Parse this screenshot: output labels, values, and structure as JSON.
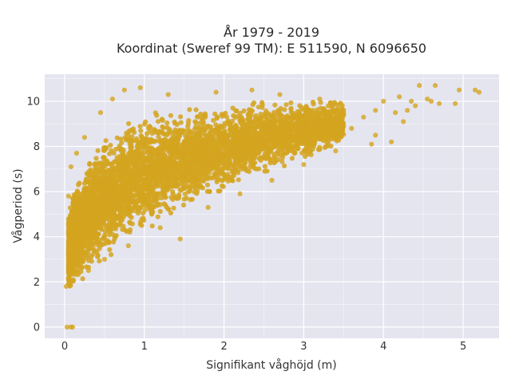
{
  "chart_data": {
    "type": "scatter",
    "title_line1": "År 1979 - 2019",
    "title_line2": "Koordinat (Sweref 99 TM): E 511590, N 6096650",
    "xlabel": "Signifikant våghöjd (m)",
    "ylabel": "Vågperiod (s)",
    "xlim": [
      -0.25,
      5.45
    ],
    "ylim": [
      -0.5,
      11.2
    ],
    "x_ticks": [
      0,
      1,
      2,
      3,
      4,
      5
    ],
    "y_ticks": [
      0,
      2,
      4,
      6,
      8,
      10
    ],
    "x_tick_labels": [
      "0",
      "1",
      "2",
      "3",
      "4",
      "5"
    ],
    "y_tick_labels": [
      "0",
      "2",
      "4",
      "6",
      "8",
      "10"
    ],
    "grid": true,
    "legend": "none",
    "colors": {
      "plot_background": "#e5e5f0",
      "grid": "#ffffff",
      "marker": "#d4a520"
    },
    "envelope": {
      "x": [
        0.05,
        0.1,
        0.2,
        0.3,
        0.5,
        0.75,
        1.0,
        1.5,
        2.0,
        2.5,
        3.0,
        3.5,
        4.0,
        4.5
      ],
      "y_low": [
        1.3,
        1.5,
        1.9,
        2.3,
        2.8,
        3.4,
        4.0,
        4.9,
        5.7,
        6.5,
        7.3,
        7.9,
        8.5,
        9.0
      ],
      "y_high": [
        5.2,
        6.2,
        7.1,
        7.8,
        8.6,
        9.3,
        9.6,
        9.9,
        10.1,
        10.2,
        10.2,
        10.3,
        10.4,
        10.5
      ]
    },
    "points": [
      [
        0.03,
        0.0
      ],
      [
        0.08,
        0.0
      ],
      [
        0.1,
        0.0
      ],
      [
        0.02,
        1.8
      ],
      [
        0.05,
        5.8
      ],
      [
        0.08,
        7.1
      ],
      [
        0.15,
        7.7
      ],
      [
        0.25,
        8.4
      ],
      [
        0.45,
        9.5
      ],
      [
        0.6,
        10.1
      ],
      [
        0.75,
        10.5
      ],
      [
        0.95,
        10.6
      ],
      [
        1.3,
        10.3
      ],
      [
        1.9,
        10.4
      ],
      [
        2.35,
        10.5
      ],
      [
        2.7,
        10.3
      ],
      [
        3.2,
        10.1
      ],
      [
        3.5,
        9.5
      ],
      [
        3.6,
        8.8
      ],
      [
        3.75,
        9.3
      ],
      [
        3.85,
        8.1
      ],
      [
        3.9,
        9.6
      ],
      [
        4.0,
        10.0
      ],
      [
        4.1,
        8.2
      ],
      [
        4.15,
        9.5
      ],
      [
        4.2,
        10.2
      ],
      [
        4.25,
        9.1
      ],
      [
        4.3,
        9.6
      ],
      [
        4.35,
        10.0
      ],
      [
        4.4,
        9.8
      ],
      [
        4.45,
        10.7
      ],
      [
        4.55,
        10.1
      ],
      [
        4.6,
        10.0
      ],
      [
        4.65,
        10.7
      ],
      [
        4.7,
        9.9
      ],
      [
        4.9,
        9.9
      ],
      [
        4.95,
        10.5
      ],
      [
        5.15,
        10.5
      ],
      [
        5.2,
        10.4
      ],
      [
        0.3,
        2.5
      ],
      [
        0.5,
        3.0
      ],
      [
        0.8,
        3.6
      ],
      [
        1.2,
        4.4
      ],
      [
        1.45,
        3.9
      ],
      [
        1.8,
        5.3
      ],
      [
        2.2,
        5.9
      ],
      [
        2.6,
        6.5
      ],
      [
        3.0,
        7.2
      ],
      [
        3.4,
        7.8
      ],
      [
        3.9,
        8.5
      ]
    ],
    "seed": 1979,
    "cloud_count": 5200
  }
}
